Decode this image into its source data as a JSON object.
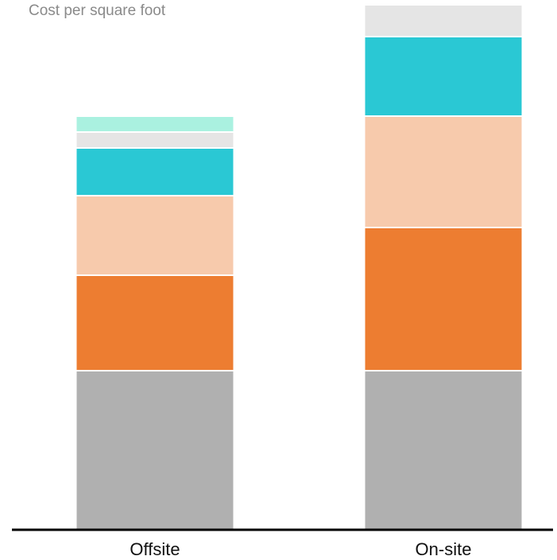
{
  "chart_data": {
    "type": "bar",
    "stacked": true,
    "title": "Cost per square foot",
    "xlabel": "",
    "ylabel": "",
    "ylim": [
      0,
      66
    ],
    "grid": false,
    "categories": [
      "Offsite",
      "On-site"
    ],
    "series": [
      {
        "color": "#b0b0b0",
        "values": [
          20,
          20
        ]
      },
      {
        "color": "#ed7d31",
        "values": [
          12,
          18
        ]
      },
      {
        "color": "#f7caac",
        "values": [
          10,
          14
        ]
      },
      {
        "color": "#2ac8d4",
        "values": [
          6,
          10
        ]
      },
      {
        "color": "#e5e5e5",
        "values": [
          2,
          4
        ]
      },
      {
        "color": "#aaf1e0",
        "values": [
          2,
          0
        ]
      }
    ]
  },
  "colors": {
    "axis": "#000000",
    "segment_separator": "#ffffff",
    "title": "#8a8a8a"
  }
}
